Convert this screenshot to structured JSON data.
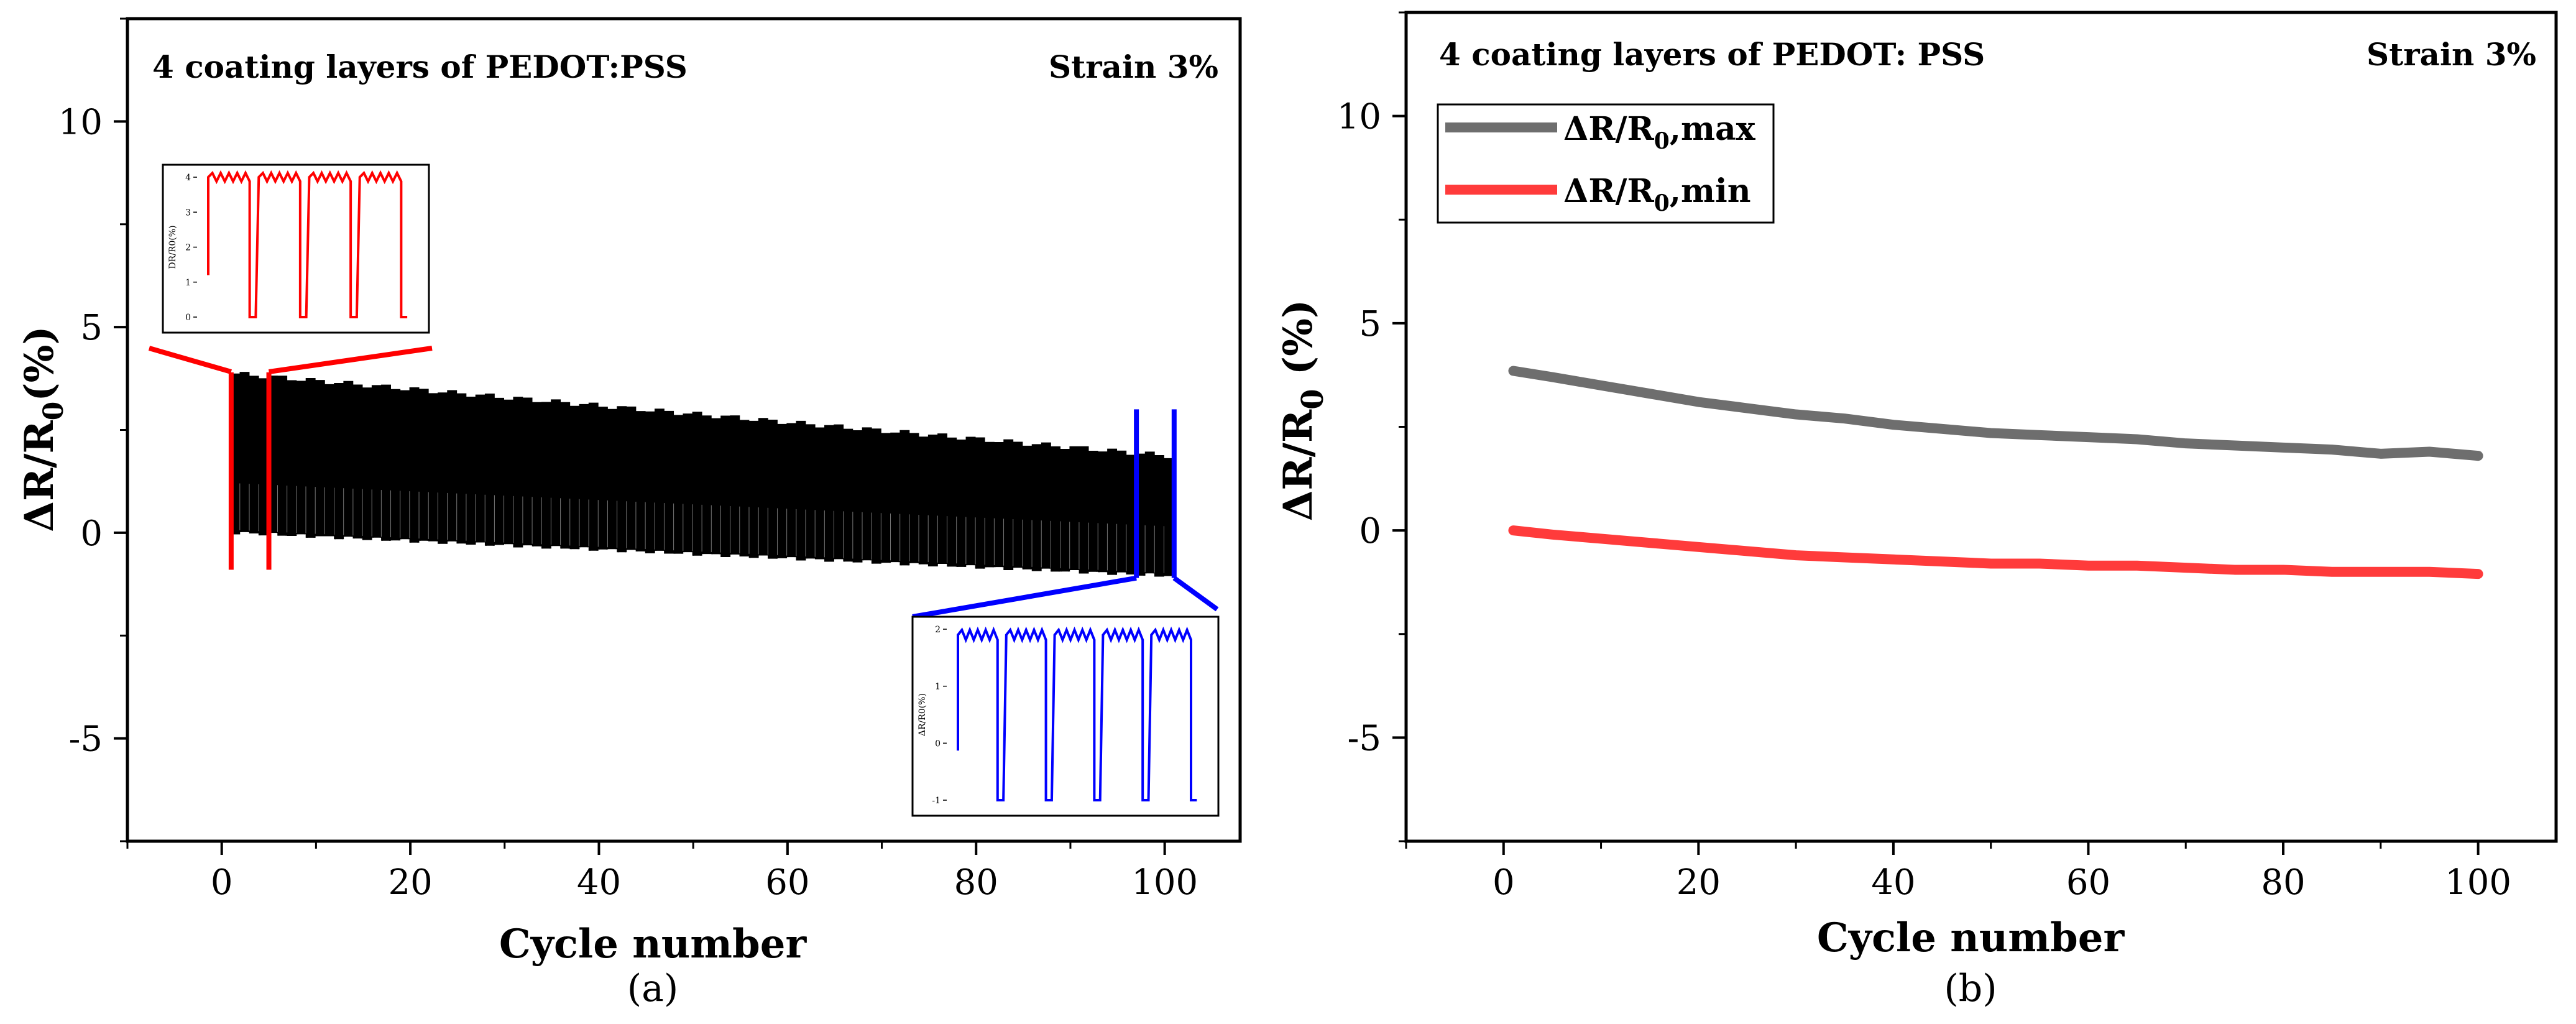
{
  "chart_data": [
    {
      "type": "line",
      "panel_label": "(a)",
      "title": "",
      "annotation_left": "4 coating layers of PEDOT:PSS",
      "annotation_right": "Strain 3%",
      "xlabel": "Cycle number",
      "ylabel_main": "ΔR/R",
      "ylabel_sub": "0",
      "ylabel_tail": "(%)",
      "xlim": [
        -10,
        108
      ],
      "ylim": [
        -7.5,
        12.5
      ],
      "xticks": [
        0,
        20,
        40,
        60,
        80,
        100
      ],
      "yticks": [
        -5,
        0,
        5,
        10
      ],
      "series": [
        {
          "color": "#000000",
          "cycles": 100,
          "max_start": 3.85,
          "max_end": 1.85,
          "min_start": 0.0,
          "min_end": -1.05
        }
      ],
      "highlights": [
        {
          "color": "#ff0000",
          "x_range": [
            1,
            5
          ],
          "y_range": [
            -0.9,
            3.9
          ]
        },
        {
          "color": "#0000ff",
          "x_range": [
            97,
            101
          ],
          "y_range": [
            -1.1,
            3.0
          ]
        }
      ],
      "insets": [
        {
          "color": "#ff0000",
          "ylabel": "DR/R0(%)",
          "ytick_labels": [
            "4",
            "3",
            "2",
            "1",
            "0"
          ],
          "pulse_high": 4.0,
          "pulse_low": 0.0,
          "pulses": 4
        },
        {
          "color": "#0000ff",
          "ylabel": "ΔR/R0(%)",
          "ytick_labels": [
            "2",
            "1",
            "0",
            "-1"
          ],
          "pulse_high": 1.9,
          "pulse_low": -1.0,
          "pulses": 5
        }
      ]
    },
    {
      "type": "line",
      "panel_label": "(b)",
      "title": "",
      "annotation_left": "4 coating layers of PEDOT: PSS",
      "annotation_right": "Strain 3%",
      "xlabel": "Cycle number",
      "ylabel_main": "ΔR/R",
      "ylabel_sub": "0",
      "ylabel_tail": " (%)",
      "xlim": [
        -10,
        108
      ],
      "ylim": [
        -7.5,
        12.5
      ],
      "xticks": [
        0,
        20,
        40,
        60,
        80,
        100
      ],
      "yticks": [
        -5,
        0,
        5,
        10
      ],
      "legend_position": "top-left",
      "series": [
        {
          "name": "ΔR/R0,max",
          "legend_main": "ΔR/R",
          "legend_sub": "0",
          "legend_tail": ",max",
          "color": "#6e6e6e",
          "x": [
            1,
            5,
            10,
            15,
            20,
            25,
            30,
            35,
            40,
            45,
            50,
            55,
            60,
            65,
            70,
            75,
            80,
            85,
            90,
            95,
            100
          ],
          "y": [
            3.85,
            3.7,
            3.5,
            3.3,
            3.1,
            2.95,
            2.8,
            2.7,
            2.55,
            2.45,
            2.35,
            2.3,
            2.25,
            2.2,
            2.1,
            2.05,
            2.0,
            1.95,
            1.85,
            1.9,
            1.8
          ]
        },
        {
          "name": "ΔR/R0,min",
          "legend_main": "ΔR/R",
          "legend_sub": "0",
          "legend_tail": ",min",
          "color": "#ff3b3b",
          "x": [
            1,
            5,
            10,
            15,
            20,
            25,
            30,
            35,
            40,
            45,
            50,
            55,
            60,
            65,
            70,
            75,
            80,
            85,
            90,
            95,
            100
          ],
          "y": [
            0.0,
            -0.1,
            -0.2,
            -0.3,
            -0.4,
            -0.5,
            -0.6,
            -0.65,
            -0.7,
            -0.75,
            -0.8,
            -0.8,
            -0.85,
            -0.85,
            -0.9,
            -0.95,
            -0.95,
            -1.0,
            -1.0,
            -1.0,
            -1.05
          ]
        }
      ]
    }
  ]
}
